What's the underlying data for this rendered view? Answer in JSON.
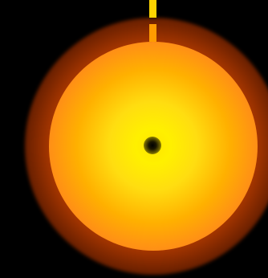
{
  "scene": {
    "background_color": "#000000",
    "sun": {
      "core_color": "#ffe600",
      "mid_color": "#ffb000",
      "edge_color": "#ff7020",
      "glow_color": "#c84800",
      "center_icon": "black-hole-icon"
    },
    "pointer": {
      "icon": "position-marker-icon",
      "top_color": "#ffd400",
      "bottom_color": "#ff9c00"
    }
  }
}
